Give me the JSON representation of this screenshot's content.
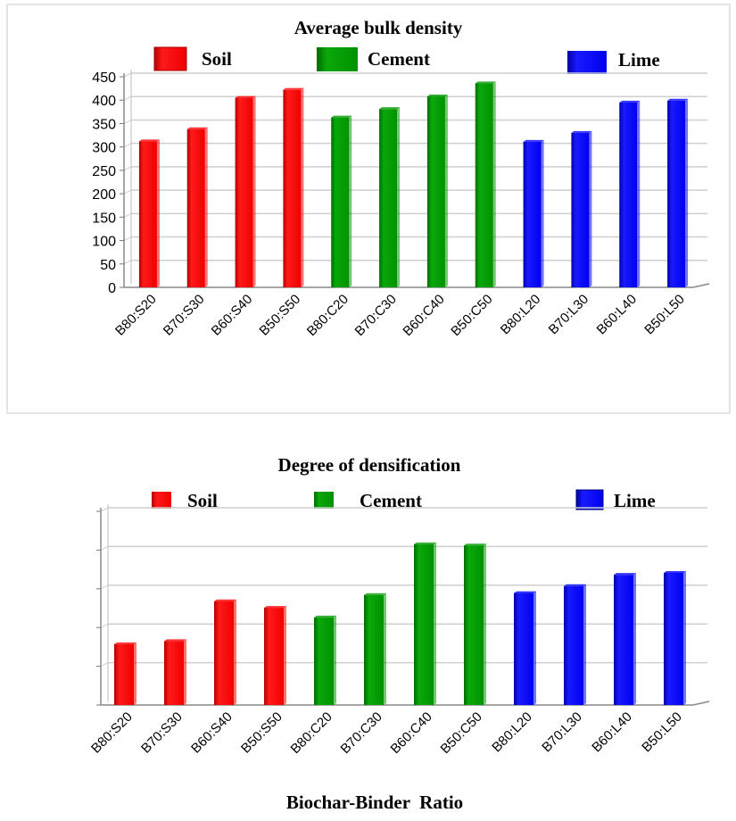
{
  "chart_data": [
    {
      "type": "bar",
      "title": "Average bulk density",
      "categories": [
        "B80:S20",
        "B70:S30",
        "B60:S40",
        "B50:S50",
        "B80:C20",
        "B70:C30",
        "B60:C40",
        "B50:C50",
        "B80:L20",
        "B70:L30",
        "B60:L40",
        "B50:L50"
      ],
      "values": [
        312,
        338,
        405,
        422,
        363,
        381,
        408,
        436,
        311,
        330,
        395,
        399
      ],
      "groups": [
        {
          "name": "Soil",
          "color": "#ff0000",
          "indices": [
            0,
            1,
            2,
            3
          ]
        },
        {
          "name": "Cement",
          "color": "#009900",
          "indices": [
            4,
            5,
            6,
            7
          ]
        },
        {
          "name": "Lime",
          "color": "#0000ff",
          "indices": [
            8,
            9,
            10,
            11
          ]
        }
      ],
      "ylim": [
        0,
        450
      ],
      "yticks": [
        0,
        50,
        100,
        150,
        200,
        250,
        300,
        350,
        400,
        450
      ],
      "ytick_labels": [
        "0",
        "50",
        "100",
        "150",
        "200",
        "250",
        "300",
        "350",
        "400",
        "450"
      ],
      "xlabel": "",
      "ylabel": "",
      "grid": true,
      "legend": "top"
    },
    {
      "type": "bar",
      "title": "Degree of densification",
      "categories": [
        "B80:S20",
        "B70:S30",
        "B60:S40",
        "B50:S50",
        "B80:C20",
        "B70:C30",
        "B60:C40",
        "B50:C50",
        "B80:L20",
        "B70:L30",
        "B60:L40",
        "B50:L50"
      ],
      "values": [
        1.57,
        1.65,
        2.68,
        2.51,
        2.26,
        2.84,
        4.15,
        4.12,
        2.89,
        3.07,
        3.36,
        3.41
      ],
      "groups": [
        {
          "name": "Soil",
          "color": "#ff0000",
          "indices": [
            0,
            1,
            2,
            3
          ]
        },
        {
          "name": "Cement",
          "color": "#009900",
          "indices": [
            4,
            5,
            6,
            7
          ]
        },
        {
          "name": "Lime",
          "color": "#0000ff",
          "indices": [
            8,
            9,
            10,
            11
          ]
        }
      ],
      "ylim": [
        0,
        5
      ],
      "yticks": [
        0,
        1,
        2,
        3,
        4,
        5
      ],
      "xlabel": "Biochar-Binder  Ratio",
      "ylabel": "",
      "grid": true,
      "legend": "top"
    }
  ]
}
